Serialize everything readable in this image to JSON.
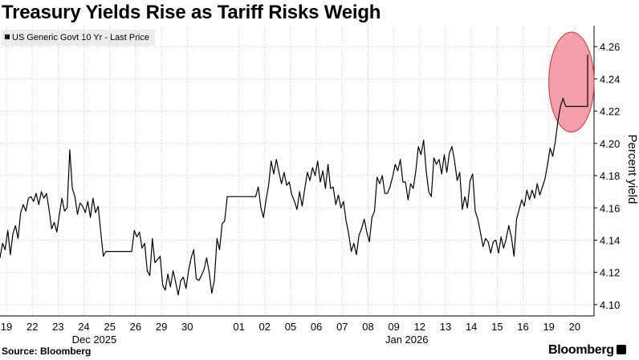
{
  "title": "Treasury Yields Rise as Tariff Risks Weigh",
  "source": "Source: Bloomberg",
  "brand": "Bloomberg",
  "chart_data": {
    "type": "line",
    "title": "Treasury Yields Rise as Tariff Risks Weigh",
    "ylabel": "Percent yield",
    "xlabel": "",
    "ylim": [
      4.093,
      4.273
    ],
    "yticks": [
      4.26,
      4.24,
      4.22,
      4.2,
      4.18,
      4.16,
      4.14,
      4.12,
      4.1
    ],
    "xticks": [
      {
        "label": "19",
        "index": 0.5
      },
      {
        "label": "22",
        "index": 2.5
      },
      {
        "label": "23",
        "index": 4.5
      },
      {
        "label": "24",
        "index": 6.5
      },
      {
        "label": "25",
        "index": 8.5
      },
      {
        "label": "26",
        "index": 10.5
      },
      {
        "label": "29",
        "index": 12.5
      },
      {
        "label": "30",
        "index": 14.5
      },
      {
        "label": "01",
        "index": 18.5
      },
      {
        "label": "02",
        "index": 20.5
      },
      {
        "label": "05",
        "index": 22.5
      },
      {
        "label": "06",
        "index": 24.5
      },
      {
        "label": "07",
        "index": 26.5
      },
      {
        "label": "08",
        "index": 28.5
      },
      {
        "label": "09",
        "index": 30.5
      },
      {
        "label": "12",
        "index": 32.5
      },
      {
        "label": "13",
        "index": 34.5
      },
      {
        "label": "14",
        "index": 36.5
      },
      {
        "label": "15",
        "index": 38.5
      },
      {
        "label": "16",
        "index": 40.5
      },
      {
        "label": "19",
        "index": 42.5
      },
      {
        "label": "20",
        "index": 44.5
      }
    ],
    "month_labels": [
      {
        "label": "Dec 2025",
        "index": 7.3
      },
      {
        "label": "Jan 2026",
        "index": 31.5
      }
    ],
    "legend": "top-left",
    "grid": "horizontal dotted",
    "y_axis_position": "right",
    "highlight": {
      "shape": "ellipse",
      "color": "#f08090",
      "x_index": [
        42.5,
        46.0
      ],
      "y_range": [
        4.207,
        4.269
      ]
    },
    "series": [
      {
        "name": "US Generic Govt 10 Yr - Last Price",
        "color": "#000000",
        "points": [
          [
            0.0,
            4.129
          ],
          [
            0.2,
            4.138
          ],
          [
            0.4,
            4.134
          ],
          [
            0.6,
            4.146
          ],
          [
            0.8,
            4.131
          ],
          [
            1.0,
            4.144
          ],
          [
            1.2,
            4.149
          ],
          [
            1.4,
            4.141
          ],
          [
            1.6,
            4.157
          ],
          [
            1.8,
            4.162
          ],
          [
            2.0,
            4.158
          ],
          [
            2.2,
            4.166
          ],
          [
            2.4,
            4.167
          ],
          [
            2.6,
            4.164
          ],
          [
            2.8,
            4.169
          ],
          [
            3.0,
            4.162
          ],
          [
            3.2,
            4.17
          ],
          [
            3.4,
            4.166
          ],
          [
            3.6,
            4.169
          ],
          [
            3.8,
            4.159
          ],
          [
            4.0,
            4.147
          ],
          [
            4.2,
            4.151
          ],
          [
            4.4,
            4.145
          ],
          [
            4.6,
            4.156
          ],
          [
            4.8,
            4.166
          ],
          [
            5.0,
            4.158
          ],
          [
            5.2,
            4.16
          ],
          [
            5.4,
            4.196
          ],
          [
            5.6,
            4.172
          ],
          [
            5.8,
            4.167
          ],
          [
            6.0,
            4.156
          ],
          [
            6.2,
            4.163
          ],
          [
            6.4,
            4.161
          ],
          [
            6.6,
            4.157
          ],
          [
            6.8,
            4.164
          ],
          [
            7.0,
            4.154
          ],
          [
            7.2,
            4.166
          ],
          [
            7.4,
            4.157
          ],
          [
            7.6,
            4.161
          ],
          [
            7.8,
            4.145
          ],
          [
            8.0,
            4.13
          ],
          [
            8.2,
            4.133
          ],
          [
            10.2,
            4.133
          ],
          [
            10.4,
            4.146
          ],
          [
            10.6,
            4.142
          ],
          [
            10.8,
            4.145
          ],
          [
            11.0,
            4.135
          ],
          [
            11.2,
            4.138
          ],
          [
            11.4,
            4.121
          ],
          [
            11.6,
            4.118
          ],
          [
            11.8,
            4.141
          ],
          [
            12.0,
            4.126
          ],
          [
            12.2,
            4.128
          ],
          [
            12.4,
            4.13
          ],
          [
            12.6,
            4.112
          ],
          [
            12.8,
            4.109
          ],
          [
            13.0,
            4.119
          ],
          [
            13.2,
            4.111
          ],
          [
            13.4,
            4.121
          ],
          [
            13.6,
            4.114
          ],
          [
            13.8,
            4.106
          ],
          [
            14.0,
            4.115
          ],
          [
            14.2,
            4.117
          ],
          [
            14.4,
            4.11
          ],
          [
            14.6,
            4.121
          ],
          [
            14.8,
            4.129
          ],
          [
            15.0,
            4.134
          ],
          [
            15.2,
            4.116
          ],
          [
            15.4,
            4.115
          ],
          [
            15.6,
            4.118
          ],
          [
            15.8,
            4.122
          ],
          [
            16.0,
            4.129
          ],
          [
            16.2,
            4.12
          ],
          [
            16.4,
            4.107
          ],
          [
            16.6,
            4.115
          ],
          [
            16.8,
            4.141
          ],
          [
            17.0,
            4.134
          ],
          [
            17.2,
            4.15
          ],
          [
            17.4,
            4.152
          ],
          [
            17.6,
            4.167
          ],
          [
            19.8,
            4.167
          ],
          [
            20.0,
            4.173
          ],
          [
            20.2,
            4.16
          ],
          [
            20.4,
            4.154
          ],
          [
            20.6,
            4.165
          ],
          [
            20.8,
            4.174
          ],
          [
            21.0,
            4.189
          ],
          [
            21.2,
            4.181
          ],
          [
            21.4,
            4.19
          ],
          [
            21.6,
            4.182
          ],
          [
            21.8,
            4.175
          ],
          [
            22.0,
            4.182
          ],
          [
            22.2,
            4.174
          ],
          [
            22.4,
            4.176
          ],
          [
            22.6,
            4.168
          ],
          [
            22.8,
            4.164
          ],
          [
            23.0,
            4.159
          ],
          [
            23.2,
            4.17
          ],
          [
            23.4,
            4.161
          ],
          [
            23.6,
            4.172
          ],
          [
            23.8,
            4.182
          ],
          [
            24.0,
            4.177
          ],
          [
            24.2,
            4.185
          ],
          [
            24.4,
            4.18
          ],
          [
            24.6,
            4.189
          ],
          [
            24.8,
            4.176
          ],
          [
            25.0,
            4.183
          ],
          [
            25.2,
            4.172
          ],
          [
            25.4,
            4.187
          ],
          [
            25.6,
            4.172
          ],
          [
            25.8,
            4.173
          ],
          [
            26.0,
            4.162
          ],
          [
            26.2,
            4.168
          ],
          [
            26.4,
            4.16
          ],
          [
            26.6,
            4.164
          ],
          [
            26.8,
            4.152
          ],
          [
            27.0,
            4.144
          ],
          [
            27.2,
            4.133
          ],
          [
            27.4,
            4.138
          ],
          [
            27.6,
            4.131
          ],
          [
            27.8,
            4.143
          ],
          [
            28.0,
            4.147
          ],
          [
            28.2,
            4.153
          ],
          [
            28.4,
            4.145
          ],
          [
            28.6,
            4.139
          ],
          [
            28.8,
            4.154
          ],
          [
            29.0,
            4.158
          ],
          [
            29.2,
            4.179
          ],
          [
            29.4,
            4.175
          ],
          [
            29.6,
            4.18
          ],
          [
            29.8,
            4.169
          ],
          [
            30.0,
            4.169
          ],
          [
            30.2,
            4.173
          ],
          [
            30.4,
            4.179
          ],
          [
            30.6,
            4.187
          ],
          [
            30.8,
            4.183
          ],
          [
            31.0,
            4.19
          ],
          [
            31.2,
            4.176
          ],
          [
            31.4,
            4.176
          ],
          [
            31.6,
            4.165
          ],
          [
            31.8,
            4.175
          ],
          [
            32.0,
            4.172
          ],
          [
            32.2,
            4.183
          ],
          [
            32.4,
            4.198
          ],
          [
            32.6,
            4.193
          ],
          [
            32.8,
            4.202
          ],
          [
            33.0,
            4.183
          ],
          [
            33.2,
            4.17
          ],
          [
            33.4,
            4.167
          ],
          [
            33.6,
            4.191
          ],
          [
            33.8,
            4.187
          ],
          [
            34.0,
            4.19
          ],
          [
            34.2,
            4.181
          ],
          [
            34.4,
            4.193
          ],
          [
            34.6,
            4.182
          ],
          [
            34.8,
            4.194
          ],
          [
            35.0,
            4.198
          ],
          [
            35.2,
            4.189
          ],
          [
            35.4,
            4.177
          ],
          [
            35.6,
            4.182
          ],
          [
            35.8,
            4.159
          ],
          [
            36.0,
            4.167
          ],
          [
            36.2,
            4.16
          ],
          [
            36.4,
            4.177
          ],
          [
            36.6,
            4.181
          ],
          [
            36.8,
            4.158
          ],
          [
            37.0,
            4.153
          ],
          [
            37.2,
            4.145
          ],
          [
            37.4,
            4.136
          ],
          [
            37.6,
            4.141
          ],
          [
            37.8,
            4.139
          ],
          [
            38.0,
            4.132
          ],
          [
            38.2,
            4.139
          ],
          [
            38.4,
            4.14
          ],
          [
            38.6,
            4.132
          ],
          [
            38.8,
            4.142
          ],
          [
            39.0,
            4.135
          ],
          [
            39.2,
            4.141
          ],
          [
            39.4,
            4.149
          ],
          [
            39.6,
            4.142
          ],
          [
            39.8,
            4.13
          ],
          [
            40.0,
            4.153
          ],
          [
            40.2,
            4.159
          ],
          [
            40.4,
            4.165
          ],
          [
            40.6,
            4.161
          ],
          [
            40.8,
            4.171
          ],
          [
            41.0,
            4.165
          ],
          [
            41.2,
            4.171
          ],
          [
            41.4,
            4.166
          ],
          [
            41.6,
            4.175
          ],
          [
            41.8,
            4.168
          ],
          [
            42.0,
            4.173
          ],
          [
            42.2,
            4.178
          ],
          [
            42.4,
            4.187
          ],
          [
            42.6,
            4.197
          ],
          [
            42.8,
            4.192
          ],
          [
            43.0,
            4.201
          ],
          [
            43.2,
            4.214
          ],
          [
            43.4,
            4.223
          ],
          [
            43.6,
            4.228
          ],
          [
            43.8,
            4.223
          ],
          [
            44.0,
            4.223
          ],
          [
            45.5,
            4.223
          ],
          [
            45.5,
            4.255
          ]
        ]
      }
    ]
  }
}
